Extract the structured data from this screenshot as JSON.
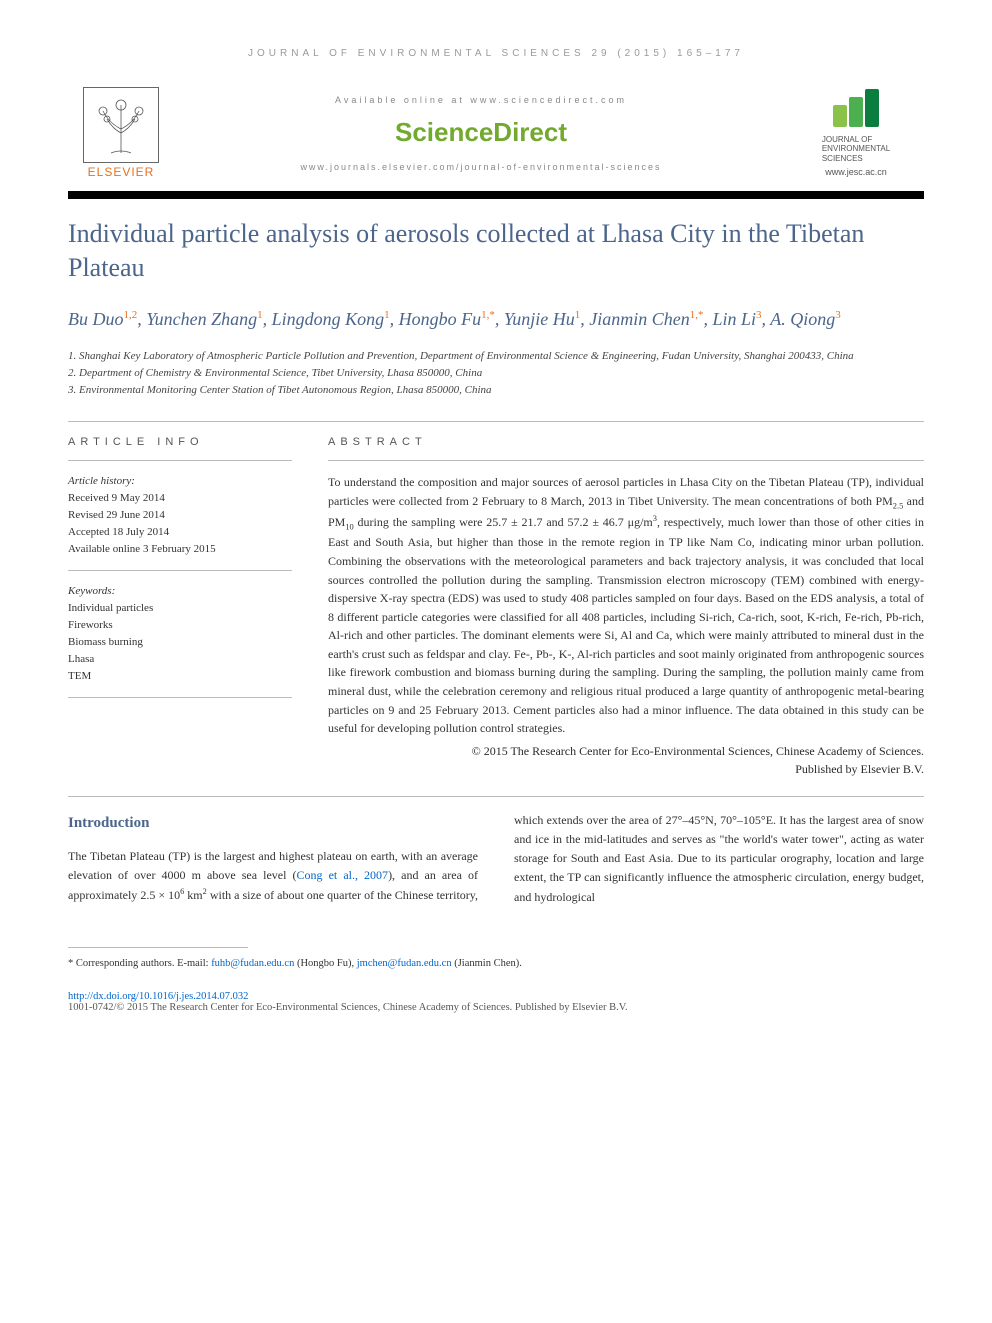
{
  "running_head": "JOURNAL OF ENVIRONMENTAL SCIENCES 29 (2015) 165–177",
  "banner": {
    "available": "Available online at www.sciencedirect.com",
    "sciencedirect": "ScienceDirect",
    "journal_url": "www.journals.elsevier.com/journal-of-environmental-sciences",
    "elsevier": "ELSEVIER",
    "jes_name_1": "JOURNAL OF",
    "jes_name_2": "ENVIRONMENTAL",
    "jes_name_3": "SCIENCES",
    "jes_url": "www.jesc.ac.cn"
  },
  "title": "Individual particle analysis of aerosols collected at Lhasa City in the Tibetan Plateau",
  "authors_html": "Bu Duo<sup>1,2</sup>, Yunchen Zhang<sup>1</sup>, Lingdong Kong<sup>1</sup>, Hongbo Fu<sup>1,*</sup>, Yunjie Hu<sup>1</sup>, Jianmin Chen<sup>1,*</sup>, Lin Li<sup>3</sup>, A. Qiong<sup>3</sup>",
  "affiliations": [
    "1. Shanghai Key Laboratory of Atmospheric Particle Pollution and Prevention, Department of Environmental Science & Engineering, Fudan University, Shanghai 200433, China",
    "2. Department of Chemistry & Environmental Science, Tibet University, Lhasa 850000, China",
    "3. Environmental Monitoring Center Station of Tibet Autonomous Region, Lhasa 850000, China"
  ],
  "article_info_label": "ARTICLE INFO",
  "abstract_label": "ABSTRACT",
  "history": {
    "hdr": "Article history:",
    "received": "Received 9 May 2014",
    "revised": "Revised 29 June 2014",
    "accepted": "Accepted 18 July 2014",
    "online": "Available online 3 February 2015"
  },
  "keywords": {
    "hdr": "Keywords:",
    "items": [
      "Individual particles",
      "Fireworks",
      "Biomass burning",
      "Lhasa",
      "TEM"
    ]
  },
  "abstract": "To understand the composition and major sources of aerosol particles in Lhasa City on the Tibetan Plateau (TP), individual particles were collected from 2 February to 8 March, 2013 in Tibet University. The mean concentrations of both PM2.5 and PM10 during the sampling were 25.7 ± 21.7 and 57.2 ± 46.7 μg/m3, respectively, much lower than those of other cities in East and South Asia, but higher than those in the remote region in TP like Nam Co, indicating minor urban pollution. Combining the observations with the meteorological parameters and back trajectory analysis, it was concluded that local sources controlled the pollution during the sampling. Transmission electron microscopy (TEM) combined with energy-dispersive X-ray spectra (EDS) was used to study 408 particles sampled on four days. Based on the EDS analysis, a total of 8 different particle categories were classified for all 408 particles, including Si-rich, Ca-rich, soot, K-rich, Fe-rich, Pb-rich, Al-rich and other particles. The dominant elements were Si, Al and Ca, which were mainly attributed to mineral dust in the earth's crust such as feldspar and clay. Fe-, Pb-, K-, Al-rich particles and soot mainly originated from anthropogenic sources like firework combustion and biomass burning during the sampling. During the sampling, the pollution mainly came from mineral dust, while the celebration ceremony and religious ritual produced a large quantity of anthropogenic metal-bearing particles on 9 and 25 February 2013. Cement particles also had a minor influence. The data obtained in this study can be useful for developing pollution control strategies.",
  "abstract_copyright_1": "© 2015 The Research Center for Eco-Environmental Sciences, Chinese Academy of Sciences.",
  "abstract_copyright_2": "Published by Elsevier B.V.",
  "intro_heading": "Introduction",
  "intro_body_html": "The Tibetan Plateau (TP) is the largest and highest plateau on earth, with an average elevation of over 4000 m above sea level (<span class=\"cite-link\">Cong et al., 2007</span>), and an area of approximately 2.5 × 10<sup>6</sup> km<sup>2</sup> with a size of about one quarter of the Chinese territory, which extends over the area of 27°–45°N, 70°–105°E. It has the largest area of snow and ice in the mid-latitudes and serves as \"the world's water tower\", acting as water storage for South and East Asia. Due to its particular orography, location and large extent, the TP can significantly influence the atmospheric circulation, energy budget, and hydrological",
  "corresponding": {
    "label": "* Corresponding authors. E-mail: ",
    "email1": "fuhb@fudan.edu.cn",
    "name1": " (Hongbo Fu), ",
    "email2": "jmchen@fudan.edu.cn",
    "name2": " (Jianmin Chen)."
  },
  "footer": {
    "doi": "http://dx.doi.org/10.1016/j.jes.2014.07.032",
    "copyright": "1001-0742/© 2015 The Research Center for Eco-Environmental Sciences, Chinese Academy of Sciences. Published by Elsevier B.V."
  },
  "colors": {
    "heading_blue": "#4b658b",
    "orange": "#e9711c",
    "green_sd": "#72a92f",
    "green_jes": "#0b7d3e",
    "link_blue": "#0066cc",
    "rule": "#bbbbbb",
    "black": "#000000"
  }
}
